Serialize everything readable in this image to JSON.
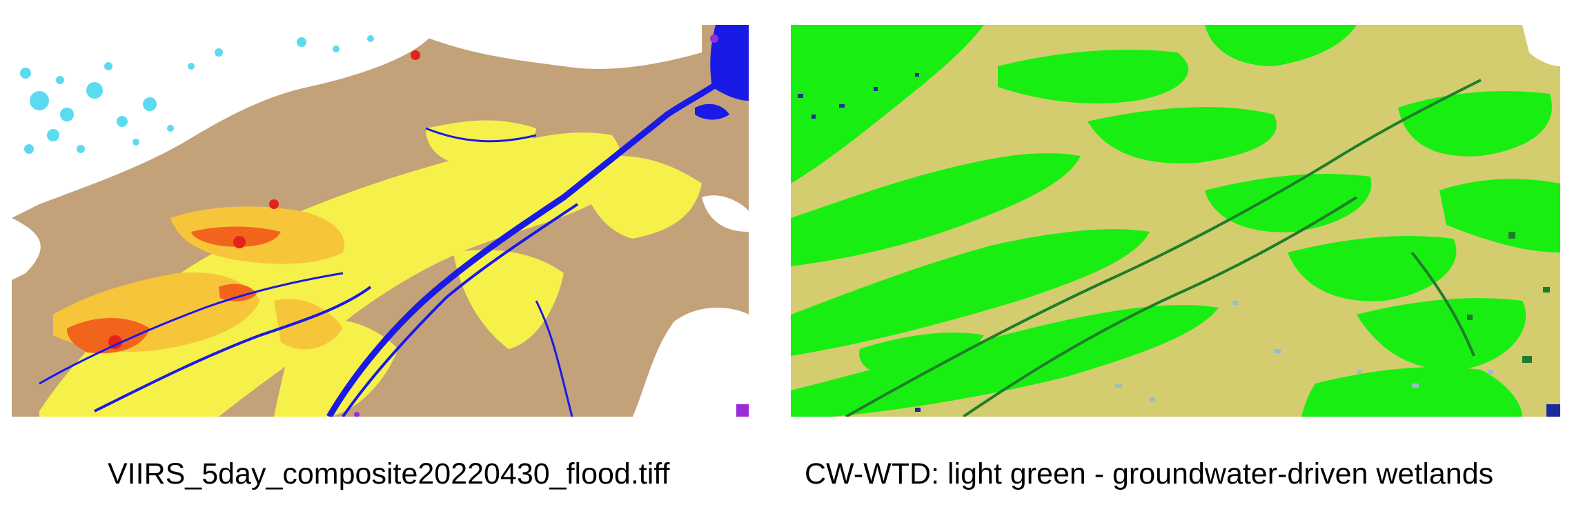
{
  "figures": [
    {
      "id": "viirs",
      "caption": "VIIRS_5day_composite20220430_flood.tiff",
      "colors": {
        "land": "#c3a27a",
        "cloud": "#ffffff",
        "snow_ice": "#3fd4ee",
        "flood_light": "#f6f04a",
        "flood_medium": "#f7c53a",
        "flood_heavy": "#f2641c",
        "flood_extreme": "#e3221a",
        "permanent_water": "#1a1ae6",
        "missing": "#9b2bd6"
      }
    },
    {
      "id": "cw-wtd",
      "caption": "CW-WTD: light green - groundwater-driven wetlands",
      "colors": {
        "background": "#d3cd6f",
        "groundwater_wetlands": "#19ee12",
        "dark_wetlands": "#1f7d2a",
        "open_water": "#1a2a9c",
        "shallow_water": "#9bbad0"
      }
    }
  ]
}
